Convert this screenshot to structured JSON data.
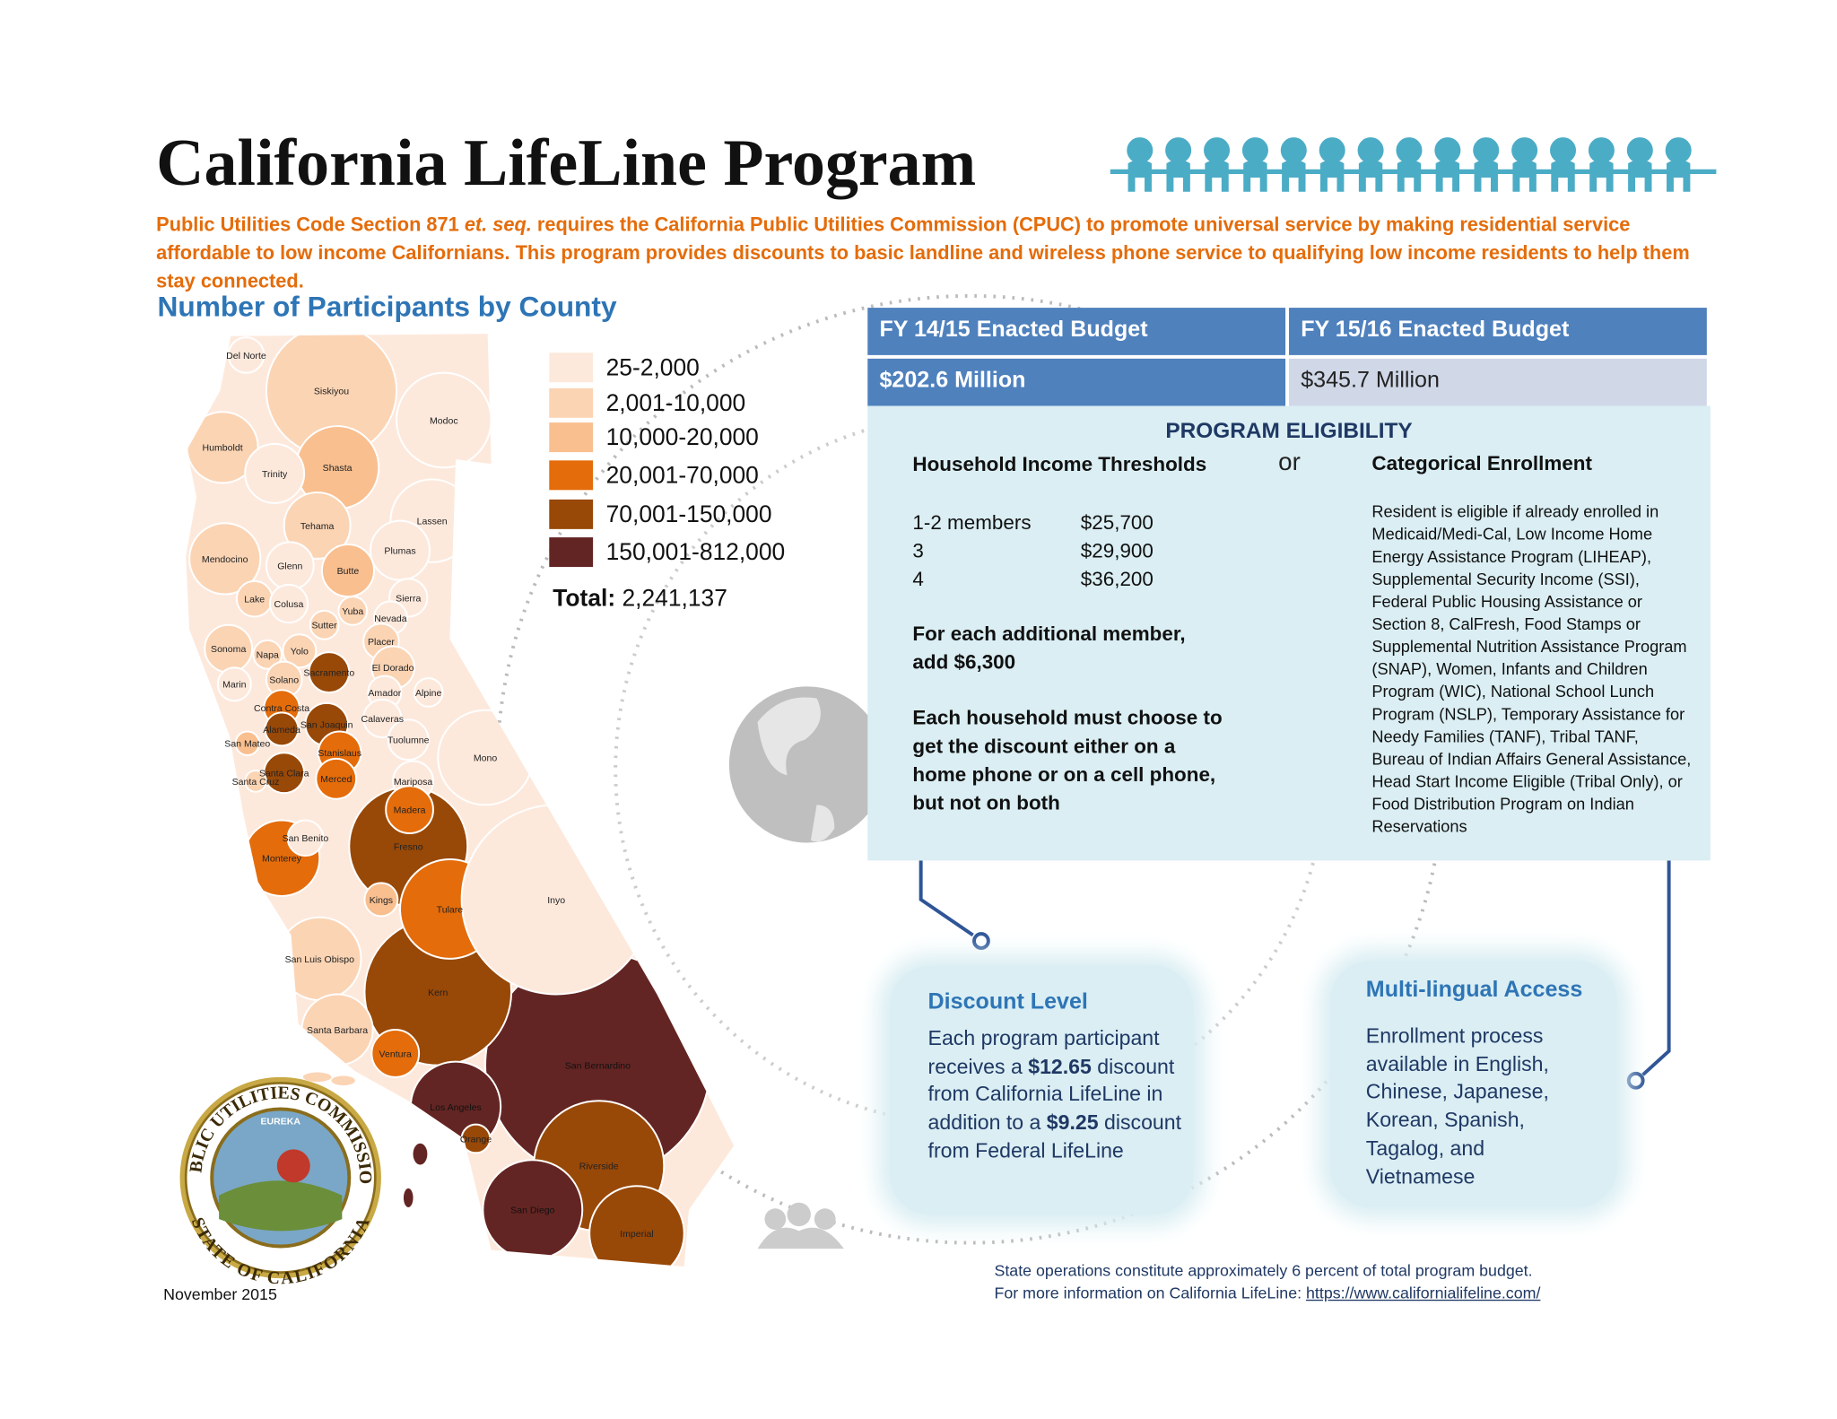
{
  "header": {
    "title": "California LifeLine Program",
    "intro": {
      "before": "Public Utilities Code Section 871 ",
      "em": "et. seq.",
      "after": " requires the California Public Utilities Commission (CPUC) to promote universal service by making residential service affordable to low income Californians. This program provides discounts to basic landline and wireless phone service to qualifying low income residents to help them stay connected."
    }
  },
  "map": {
    "title": "Number of Participants by County",
    "legend": [
      {
        "label": "25-2,000",
        "color": "#fde9dc"
      },
      {
        "label": "2,001-10,000",
        "color": "#fbd4b4"
      },
      {
        "label": "10,000-20,000",
        "color": "#f9bf8f"
      },
      {
        "label": "20,001-70,000",
        "color": "#e46c0a"
      },
      {
        "label": "70,001-150,000",
        "color": "#984807"
      },
      {
        "label": "150,001-812,000",
        "color": "#632523"
      }
    ],
    "total_label": "Total:",
    "total": "2,241,137",
    "counties": [
      {
        "name": "San Bernardino",
        "level": 5
      },
      {
        "name": "Kern",
        "level": 4
      },
      {
        "name": "Fresno",
        "level": 4
      },
      {
        "name": "Riverside",
        "level": 4
      },
      {
        "name": "Tulare",
        "level": 3
      },
      {
        "name": "Inyo",
        "level": 0
      },
      {
        "name": "San Diego",
        "level": 5
      },
      {
        "name": "Imperial",
        "level": 4
      },
      {
        "name": "Los Angeles",
        "level": 5
      },
      {
        "name": "Siskiyou",
        "level": 1
      },
      {
        "name": "Modoc",
        "level": 0
      },
      {
        "name": "Lassen",
        "level": 0
      },
      {
        "name": "Mono",
        "level": 0
      },
      {
        "name": "Monterey",
        "level": 3
      },
      {
        "name": "San Luis Obispo",
        "level": 1
      },
      {
        "name": "Humboldt",
        "level": 1
      },
      {
        "name": "Shasta",
        "level": 2
      },
      {
        "name": "Trinity",
        "level": 0
      },
      {
        "name": "Mendocino",
        "level": 1
      },
      {
        "name": "Del Norte",
        "level": 0
      },
      {
        "name": "Tehama",
        "level": 1
      },
      {
        "name": "Plumas",
        "level": 0
      },
      {
        "name": "Glenn",
        "level": 0
      },
      {
        "name": "Butte",
        "level": 2
      },
      {
        "name": "Lake",
        "level": 1
      },
      {
        "name": "Colusa",
        "level": 0
      },
      {
        "name": "Sierra",
        "level": 0
      },
      {
        "name": "Yuba",
        "level": 1
      },
      {
        "name": "Sutter",
        "level": 1
      },
      {
        "name": "Nevada",
        "level": 0
      },
      {
        "name": "Placer",
        "level": 1
      },
      {
        "name": "Sonoma",
        "level": 1
      },
      {
        "name": "Napa",
        "level": 1
      },
      {
        "name": "Yolo",
        "level": 1
      },
      {
        "name": "Sacramento",
        "level": 4
      },
      {
        "name": "El Dorado",
        "level": 1
      },
      {
        "name": "Solano",
        "level": 1
      },
      {
        "name": "Marin",
        "level": 0
      },
      {
        "name": "Amador",
        "level": 0
      },
      {
        "name": "Alpine",
        "level": 0
      },
      {
        "name": "Contra Costa",
        "level": 3
      },
      {
        "name": "Calaveras",
        "level": 0
      },
      {
        "name": "San Joaquin",
        "level": 4
      },
      {
        "name": "Alameda",
        "level": 4
      },
      {
        "name": "San Mateo",
        "level": 2
      },
      {
        "name": "Tuolumne",
        "level": 0
      },
      {
        "name": "Stanislaus",
        "level": 3
      },
      {
        "name": "Santa Clara",
        "level": 4
      },
      {
        "name": "Santa Cruz",
        "level": 1
      },
      {
        "name": "Merced",
        "level": 3
      },
      {
        "name": "Mariposa",
        "level": 0
      },
      {
        "name": "Madera",
        "level": 3
      },
      {
        "name": "San Benito",
        "level": 0
      },
      {
        "name": "Kings",
        "level": 2
      },
      {
        "name": "Santa Barbara",
        "level": 1
      },
      {
        "name": "Ventura",
        "level": 3
      },
      {
        "name": "Orange",
        "level": 4
      }
    ]
  },
  "seal": {
    "top": "PUBLIC UTILITIES COMMISSION",
    "bottom": "STATE OF CALIFORNIA",
    "motto": "EUREKA"
  },
  "budget": {
    "headers": [
      "FY 14/15 Enacted Budget",
      "FY 15/16 Enacted Budget"
    ],
    "values": [
      "$202.6 Million",
      "$345.7 Million"
    ]
  },
  "eligibility": {
    "title": "PROGRAM ELIGIBILITY",
    "income_title": "Household Income Thresholds",
    "or": "or",
    "categorical_title": "Categorical Enrollment",
    "thresholds": [
      {
        "members": "1-2 members",
        "amount": "$25,700"
      },
      {
        "members": "3",
        "amount": "$29,900"
      },
      {
        "members": "4",
        "amount": "$36,200"
      }
    ],
    "additional": "For each additional member, add $6,300",
    "choice": "Each household must choose to get the discount either on a home phone or on a cell phone, but not on both",
    "categorical_text": "Resident is eligible if already enrolled in Medicaid/Medi-Cal, Low Income Home Energy Assistance Program (LIHEAP), Supplemental Security Income (SSI), Federal Public Housing Assistance or Section 8, CalFresh, Food Stamps or Supplemental Nutrition Assistance Program (SNAP),  Women, Infants and Children Program (WIC),  National School Lunch Program (NSLP),  Temporary Assistance for Needy Families (TANF), Tribal TANF, Bureau of Indian Affairs General Assistance, Head Start Income Eligible (Tribal Only), or Food Distribution Program on Indian Reservations"
  },
  "discount": {
    "title": "Discount Level",
    "text": [
      "Each program participant receives a ",
      "$12.65",
      " discount from California LifeLine in addition to a ",
      "$9.25",
      " discount from Federal LifeLine"
    ]
  },
  "multilingual": {
    "title": "Multi-lingual Access",
    "text": "Enrollment process available in English, Chinese, Japanese, Korean, Spanish, Tagalog, and Vietnamese"
  },
  "footer": {
    "date": "November 2015",
    "note": "State operations constitute approximately 6 percent of total program budget.",
    "more": "For more information on California LifeLine: ",
    "link": "https://www.californialifeline.com/"
  }
}
